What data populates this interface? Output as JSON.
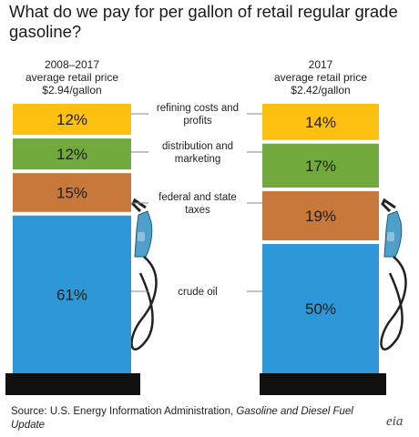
{
  "title": "What do we pay for per gallon of retail regular grade gasoline?",
  "source": {
    "prefix": "Source: U.S. Energy Information Administration, ",
    "italic": "Gasoline and Diesel Fuel Update"
  },
  "logo_text": "eia",
  "colors": {
    "refining": "#fdc010",
    "distribution": "#71a93d",
    "taxes": "#c8783a",
    "crude": "#2d97d8",
    "pump": "#4f9fcb",
    "base": "#111111"
  },
  "chart_data": {
    "type": "bar",
    "stacked": true,
    "unit": "%",
    "categories": [
      "2008–2017",
      "2017"
    ],
    "category_headers": [
      [
        "2008–2017",
        "average retail price",
        "$2.94/gallon"
      ],
      [
        "2017",
        "average retail price",
        "$2.42/gallon"
      ]
    ],
    "series": [
      {
        "name": "refining costs and profits",
        "label_lines": [
          "refining costs and",
          "profits"
        ],
        "color": "#fdc010",
        "values": [
          12,
          14
        ]
      },
      {
        "name": "distribution and marketing",
        "label_lines": [
          "distribution and",
          "marketing"
        ],
        "color": "#71a93d",
        "values": [
          12,
          17
        ]
      },
      {
        "name": "federal and state taxes",
        "label_lines": [
          "federal and state",
          "taxes"
        ],
        "color": "#c8783a",
        "values": [
          15,
          19
        ]
      },
      {
        "name": "crude oil",
        "label_lines": [
          "crude oil"
        ],
        "color": "#2d97d8",
        "values": [
          61,
          50
        ]
      }
    ]
  }
}
